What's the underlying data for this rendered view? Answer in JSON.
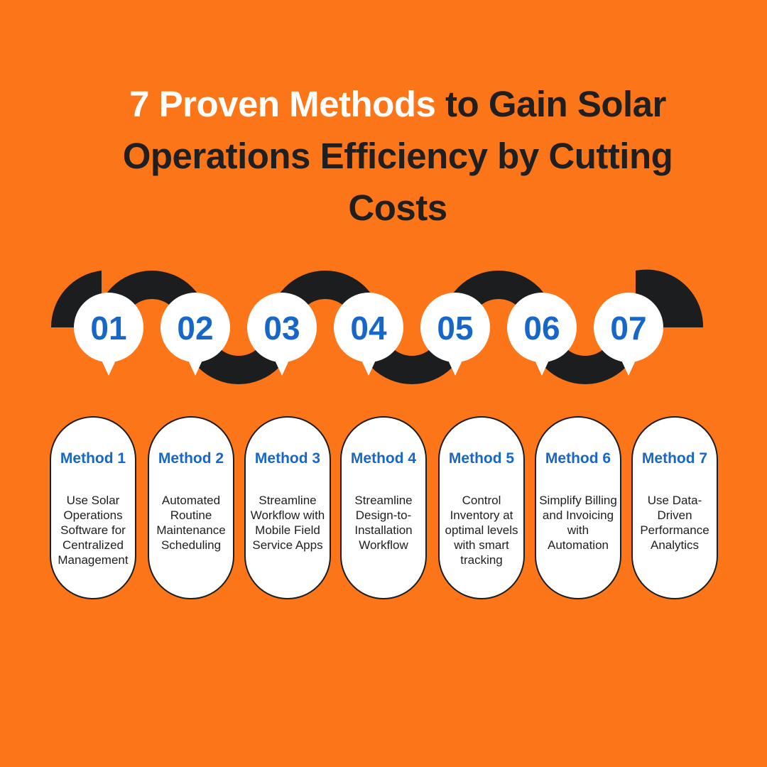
{
  "title": {
    "highlight": "7 Proven Methods",
    "rest": " to Gain Solar Operations Efficiency by Cutting Costs"
  },
  "colors": {
    "background": "#fd7519",
    "track": "#1b1d1f",
    "number": "#1767c9",
    "method_title": "#1767c9",
    "text": "#1f1f1f"
  },
  "steps": [
    {
      "number": "01",
      "label": "Method 1",
      "description": "Use Solar Operations Software for Centralized Management"
    },
    {
      "number": "02",
      "label": "Method 2",
      "description": "Automated Routine Maintenance Scheduling"
    },
    {
      "number": "03",
      "label": "Method 3",
      "description": "Streamline Workflow with Mobile Field Service Apps"
    },
    {
      "number": "04",
      "label": "Method 4",
      "description": "Streamline Design-to-Installation Workflow"
    },
    {
      "number": "05",
      "label": "Method 5",
      "description": "Control Inventory at optimal levels with smart tracking"
    },
    {
      "number": "06",
      "label": "Method 6",
      "description": "Simplify Billing and Invoicing with Automation"
    },
    {
      "number": "07",
      "label": "Method 7",
      "description": "Use Data-Driven Performance Analytics"
    }
  ]
}
